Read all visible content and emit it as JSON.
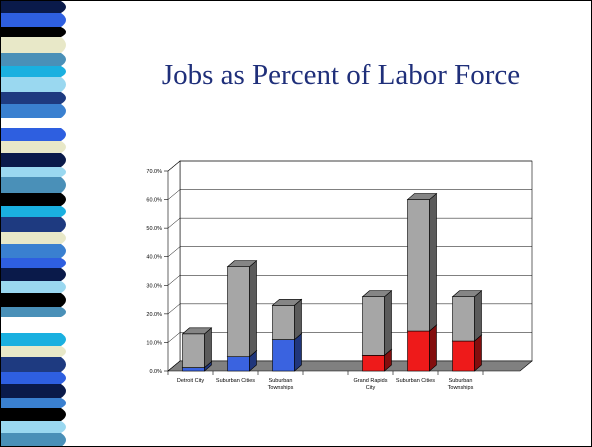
{
  "slide": {
    "title": "Jobs as Percent of Labor Force"
  },
  "colors": {
    "title": "#1f2f7a",
    "gray_bar": "#a6a6a6",
    "detroit_bar": "#3a63e0",
    "grand_rapids_bar": "#ee1a1a",
    "floor": "#808080",
    "strip_palette": [
      "#0a1a4a",
      "#2e5fe0",
      "#000000",
      "#e8e8c8",
      "#4a90b8",
      "#1ab0e0",
      "#9ad8f0",
      "#1e3a80",
      "#3a80d0",
      "#ffffff"
    ]
  },
  "chart_data": {
    "type": "bar",
    "stacked": true,
    "3d": true,
    "title": "",
    "xlabel": "",
    "ylabel": "",
    "ylim": [
      0,
      70
    ],
    "yticks": [
      "0.0%",
      "10.0%",
      "20.0%",
      "30.0%",
      "40.0%",
      "50.0%",
      "60.0%",
      "70.0%"
    ],
    "grid": true,
    "legend": "none",
    "groups": [
      {
        "categories": [
          {
            "label": [
              "Detroit City"
            ],
            "lower": 1.2,
            "total": 13.0,
            "color": "#3a63e0"
          },
          {
            "label": [
              "Suburban Cities"
            ],
            "lower": 5.0,
            "total": 36.5,
            "color": "#3a63e0"
          },
          {
            "label": [
              "Suburban",
              "Townships"
            ],
            "lower": 11.0,
            "total": 23.0,
            "color": "#3a63e0"
          }
        ]
      },
      {
        "categories": [
          {
            "label": [
              "Grand Rapids",
              "City"
            ],
            "lower": 5.5,
            "total": 26.0,
            "color": "#ee1a1a"
          },
          {
            "label": [
              "Suburban Cities"
            ],
            "lower": 14.0,
            "total": 60.0,
            "color": "#ee1a1a"
          },
          {
            "label": [
              "Suburban",
              "Townships"
            ],
            "lower": 10.5,
            "total": 26.0,
            "color": "#ee1a1a"
          }
        ]
      }
    ]
  }
}
